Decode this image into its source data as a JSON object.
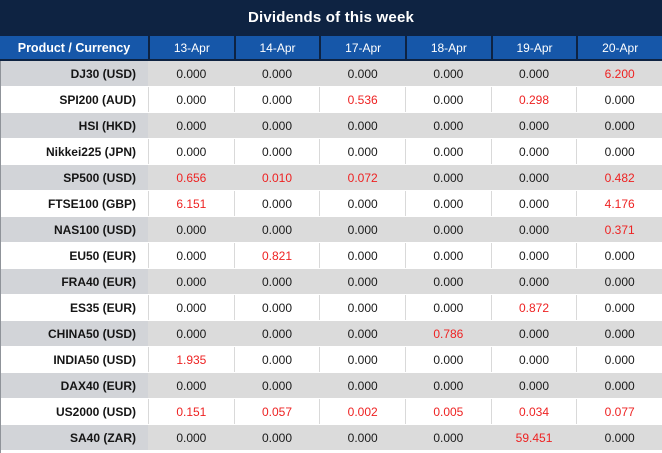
{
  "title": "Dividends of this week",
  "colors": {
    "title_bar_bg": "#0e2342",
    "header_bg": "#1657a9",
    "header_text": "#ffffff",
    "row_gray": "#dbdbdb",
    "row_product_gray": "#d2d4d8",
    "row_white": "#ffffff",
    "value_black": "#1a1a1a",
    "value_red": "#ee2222"
  },
  "table": {
    "product_header": "Product / Currency",
    "date_headers": [
      "13-Apr",
      "14-Apr",
      "17-Apr",
      "18-Apr",
      "19-Apr",
      "20-Apr"
    ],
    "rows": [
      {
        "product": "DJ30 (USD)",
        "values": [
          "0.000",
          "0.000",
          "0.000",
          "0.000",
          "0.000",
          "6.200"
        ],
        "red_cols": [
          5
        ]
      },
      {
        "product": "SPI200 (AUD)",
        "values": [
          "0.000",
          "0.000",
          "0.536",
          "0.000",
          "0.298",
          "0.000"
        ],
        "red_cols": [
          2,
          4
        ]
      },
      {
        "product": "HSI (HKD)",
        "values": [
          "0.000",
          "0.000",
          "0.000",
          "0.000",
          "0.000",
          "0.000"
        ],
        "red_cols": []
      },
      {
        "product": "Nikkei225 (JPN)",
        "values": [
          "0.000",
          "0.000",
          "0.000",
          "0.000",
          "0.000",
          "0.000"
        ],
        "red_cols": []
      },
      {
        "product": "SP500 (USD)",
        "values": [
          "0.656",
          "0.010",
          "0.072",
          "0.000",
          "0.000",
          "0.482"
        ],
        "red_cols": [
          0,
          1,
          2,
          5
        ]
      },
      {
        "product": "FTSE100 (GBP)",
        "values": [
          "6.151",
          "0.000",
          "0.000",
          "0.000",
          "0.000",
          "4.176"
        ],
        "red_cols": [
          0,
          5
        ]
      },
      {
        "product": "NAS100 (USD)",
        "values": [
          "0.000",
          "0.000",
          "0.000",
          "0.000",
          "0.000",
          "0.371"
        ],
        "red_cols": [
          5
        ]
      },
      {
        "product": "EU50 (EUR)",
        "values": [
          "0.000",
          "0.821",
          "0.000",
          "0.000",
          "0.000",
          "0.000"
        ],
        "red_cols": [
          1
        ]
      },
      {
        "product": "FRA40 (EUR)",
        "values": [
          "0.000",
          "0.000",
          "0.000",
          "0.000",
          "0.000",
          "0.000"
        ],
        "red_cols": []
      },
      {
        "product": "ES35 (EUR)",
        "values": [
          "0.000",
          "0.000",
          "0.000",
          "0.000",
          "0.872",
          "0.000"
        ],
        "red_cols": [
          4
        ]
      },
      {
        "product": "CHINA50 (USD)",
        "values": [
          "0.000",
          "0.000",
          "0.000",
          "0.786",
          "0.000",
          "0.000"
        ],
        "red_cols": [
          3
        ]
      },
      {
        "product": "INDIA50 (USD)",
        "values": [
          "1.935",
          "0.000",
          "0.000",
          "0.000",
          "0.000",
          "0.000"
        ],
        "red_cols": [
          0
        ]
      },
      {
        "product": "DAX40 (EUR)",
        "values": [
          "0.000",
          "0.000",
          "0.000",
          "0.000",
          "0.000",
          "0.000"
        ],
        "red_cols": []
      },
      {
        "product": "US2000 (USD)",
        "values": [
          "0.151",
          "0.057",
          "0.002",
          "0.005",
          "0.034",
          "0.077"
        ],
        "red_cols": [
          0,
          1,
          2,
          3,
          4,
          5
        ]
      },
      {
        "product": "SA40 (ZAR)",
        "values": [
          "0.000",
          "0.000",
          "0.000",
          "0.000",
          "59.451",
          "0.000"
        ],
        "red_cols": [
          4
        ]
      }
    ]
  }
}
